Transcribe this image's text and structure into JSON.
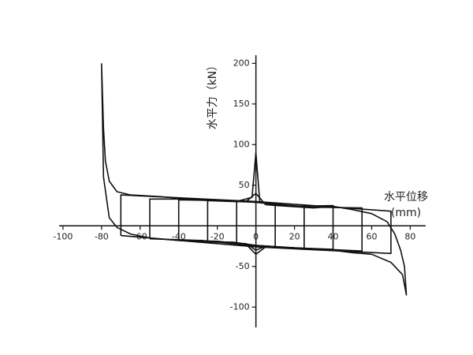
{
  "chart_data": {
    "type": "line",
    "ylabel": "水平力（kN）",
    "xlabel": "水平位移",
    "xlabel_unit": "(mm)",
    "xlim": [
      -102,
      88
    ],
    "ylim": [
      -125,
      210
    ],
    "xticks": [
      -100,
      -80,
      -60,
      -40,
      -20,
      0,
      20,
      40,
      60,
      80
    ],
    "yticks": [
      -100,
      -50,
      50,
      100,
      150,
      200
    ],
    "series": [
      {
        "color": "#111",
        "x": [
          -80,
          -79,
          -78,
          -76,
          -72,
          -65,
          -50,
          -30,
          -10,
          -2,
          0,
          2,
          10,
          30,
          40,
          50,
          60,
          68,
          72,
          75,
          77,
          78,
          76,
          70,
          60,
          50,
          40,
          20,
          5,
          0,
          -5,
          -20,
          -40,
          -55,
          -65,
          -72,
          -76,
          -79,
          -80
        ],
        "values": [
          200,
          120,
          80,
          55,
          42,
          38,
          36,
          32,
          30,
          35,
          90,
          30,
          25,
          22,
          24,
          20,
          15,
          5,
          -10,
          -30,
          -50,
          -85,
          -60,
          -45,
          -35,
          -33,
          -30,
          -28,
          -25,
          -30,
          -22,
          -20,
          -18,
          -15,
          -10,
          -2,
          10,
          60,
          200
        ]
      },
      {
        "color": "#111",
        "x": [
          -70,
          -70,
          -35,
          0,
          35,
          70,
          70,
          35,
          0,
          -35,
          -70
        ],
        "values": [
          -12,
          38,
          34,
          30,
          24,
          18,
          -34,
          -30,
          -26,
          -19,
          -12
        ]
      },
      {
        "color": "#111",
        "x": [
          -55,
          -55,
          -28,
          0,
          28,
          55,
          55,
          28,
          0,
          -28,
          -55
        ],
        "values": [
          -16,
          33,
          33,
          29,
          23,
          22,
          -31,
          -28,
          -25,
          -18,
          -16
        ]
      },
      {
        "color": "#111",
        "x": [
          -40,
          -40,
          -20,
          0,
          20,
          40,
          40,
          20,
          0,
          -20,
          -40
        ],
        "values": [
          -18,
          32,
          31,
          29,
          24,
          25,
          -29,
          -27,
          -24,
          -19,
          -18
        ]
      },
      {
        "color": "#111",
        "x": [
          -25,
          -25,
          -12,
          0,
          12,
          25,
          25,
          12,
          0,
          -12,
          -25
        ],
        "values": [
          -20,
          31,
          30,
          30,
          25,
          24,
          -28,
          -26,
          -24,
          -20,
          -20
        ]
      },
      {
        "color": "#111",
        "x": [
          -10,
          -10,
          -5,
          0,
          5,
          10,
          10,
          5,
          0,
          -5,
          -10
        ],
        "values": [
          -22,
          30,
          30,
          40,
          26,
          25,
          -27,
          -26,
          -35,
          -23,
          -22
        ]
      }
    ]
  }
}
